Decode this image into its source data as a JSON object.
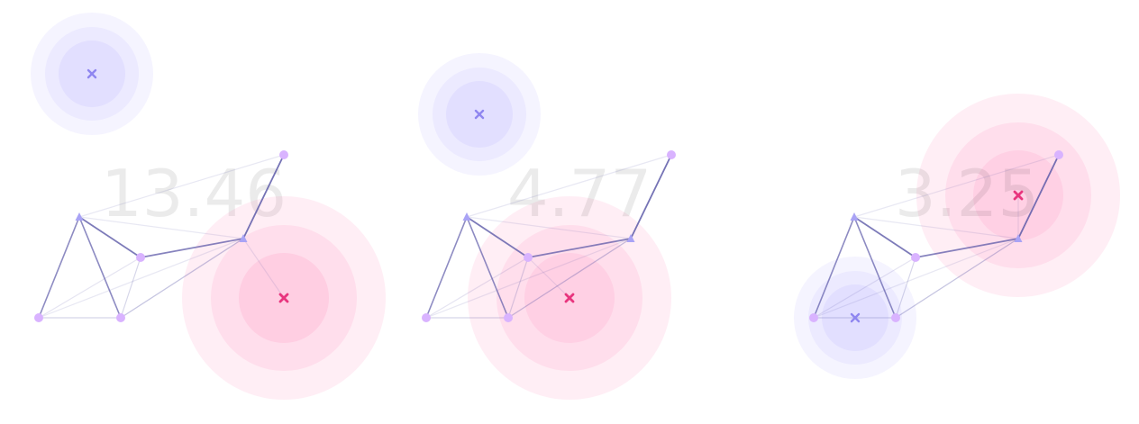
{
  "colors": {
    "purple_glow": "#9f97ff",
    "pink_glow": "#ff5aa0",
    "purple_marker": "#8f86f0",
    "pink_marker": "#e8357e",
    "node_fill": "#d9b3ff",
    "triangle_fill": "#a9a3f5",
    "edge_color": "#5d5aa8"
  },
  "panels": [
    {
      "value_label": "13.46"
    },
    {
      "value_label": "4.77"
    },
    {
      "value_label": "3.25"
    }
  ]
}
